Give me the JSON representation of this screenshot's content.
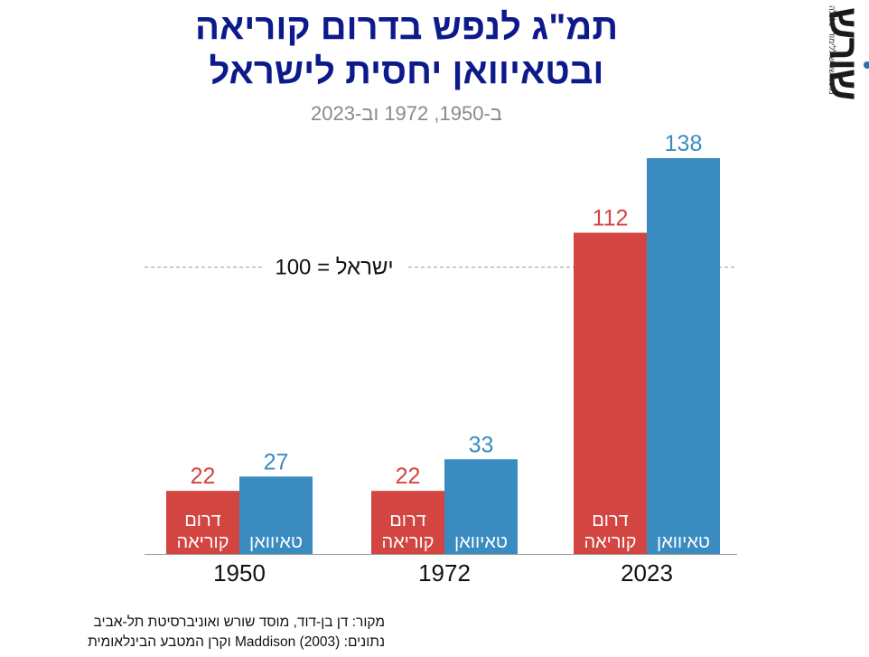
{
  "title": {
    "line1": "תמ\"ג לנפש בדרום קוריאה",
    "line2": "ובטאיוואן יחסית לישראל"
  },
  "subtitle": "ב-1950, 1972 וב-2023",
  "logo": {
    "text": "שורש",
    "small": "מוסד שורש ללימודי כלכלה"
  },
  "chart_data": {
    "type": "bar",
    "title": "תמ\"ג לנפש בדרום קוריאה ובטאיוואן יחסית לישראל",
    "subtitle": "ב-1950, 1972 וב-2023",
    "categories": [
      "1950",
      "1972",
      "2023"
    ],
    "series": [
      {
        "name": "דרום קוריאה",
        "label_lines": [
          "דרום",
          "קוריאה"
        ],
        "color": "#d24540",
        "values": [
          22,
          22,
          112
        ]
      },
      {
        "name": "טאיוואן",
        "label_lines": [
          "טאיוואן"
        ],
        "color": "#3a8cc0",
        "values": [
          27,
          33,
          138
        ]
      }
    ],
    "reference_line": {
      "value": 100,
      "label": "ישראל = 100",
      "style": "dashed",
      "color": "#999999"
    },
    "ylim": [
      0,
      150
    ],
    "grid": false,
    "legend": "none"
  },
  "source": {
    "line1": "מקור: דן בן-דוד, מוסד שורש ואוניברסיטת תל-אביב",
    "line2": "נתונים: Maddison (2003) וקרן המטבע הבינלאומית"
  }
}
